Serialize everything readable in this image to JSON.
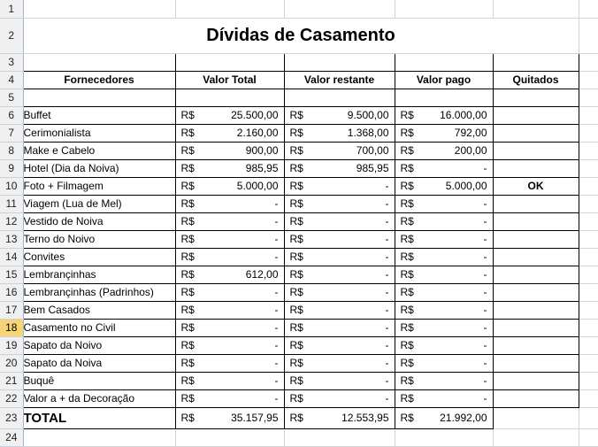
{
  "title": "Dívidas de Casamento",
  "headers": {
    "fornecedores": "Fornecedores",
    "valor_total": "Valor Total",
    "valor_restante": "Valor restante",
    "valor_pago": "Valor pago",
    "quitados": "Quitados"
  },
  "currency": "R$",
  "row_numbers": [
    "1",
    "2",
    "3",
    "4",
    "5",
    "6",
    "7",
    "8",
    "9",
    "10",
    "11",
    "12",
    "13",
    "14",
    "15",
    "16",
    "17",
    "18",
    "19",
    "20",
    "21",
    "22",
    "23",
    "24"
  ],
  "active_row": "18",
  "rows": [
    {
      "name": "Buffet",
      "total": "25.500,00",
      "restante": "9.500,00",
      "pago": "16.000,00",
      "quitado": ""
    },
    {
      "name": "Cerimonialista",
      "total": "2.160,00",
      "restante": "1.368,00",
      "pago": "792,00",
      "quitado": ""
    },
    {
      "name": "Make e Cabelo",
      "total": "900,00",
      "restante": "700,00",
      "pago": "200,00",
      "quitado": ""
    },
    {
      "name": "Hotel (Dia da Noiva)",
      "total": "985,95",
      "restante": "985,95",
      "pago": "-",
      "quitado": ""
    },
    {
      "name": "Foto + Filmagem",
      "total": "5.000,00",
      "restante": "-",
      "pago": "5.000,00",
      "quitado": "OK"
    },
    {
      "name": "Viagem (Lua de Mel)",
      "total": "-",
      "restante": "-",
      "pago": "-",
      "quitado": ""
    },
    {
      "name": "Vestido de Noiva",
      "total": "-",
      "restante": "-",
      "pago": "-",
      "quitado": ""
    },
    {
      "name": "Terno do Noivo",
      "total": "-",
      "restante": "-",
      "pago": "-",
      "quitado": ""
    },
    {
      "name": "Convites",
      "total": "-",
      "restante": "-",
      "pago": "-",
      "quitado": ""
    },
    {
      "name": "Lembrançinhas",
      "total": "612,00",
      "restante": "-",
      "pago": "-",
      "quitado": ""
    },
    {
      "name": "Lembrançinhas (Padrinhos)",
      "total": "-",
      "restante": "-",
      "pago": "-",
      "quitado": ""
    },
    {
      "name": "Bem Casados",
      "total": "-",
      "restante": "-",
      "pago": "-",
      "quitado": ""
    },
    {
      "name": "Casamento no Civil",
      "total": "-",
      "restante": "-",
      "pago": "-",
      "quitado": ""
    },
    {
      "name": "Sapato da Noivo",
      "total": "-",
      "restante": "-",
      "pago": "-",
      "quitado": ""
    },
    {
      "name": "Sapato da Noiva",
      "total": "-",
      "restante": "-",
      "pago": "-",
      "quitado": ""
    },
    {
      "name": "Buquê",
      "total": "-",
      "restante": "-",
      "pago": "-",
      "quitado": ""
    },
    {
      "name": "Valor a + da Decoração",
      "total": "-",
      "restante": "-",
      "pago": "-",
      "quitado": ""
    }
  ],
  "total_row": {
    "label": "TOTAL",
    "total": "35.157,95",
    "restante": "12.553,95",
    "pago": "21.992,00"
  },
  "colors": {
    "grid": "#d4d4d4",
    "row_header_bg": "#f0f0f0",
    "active_row_header_bg": "#f6d576",
    "border": "#000000"
  }
}
